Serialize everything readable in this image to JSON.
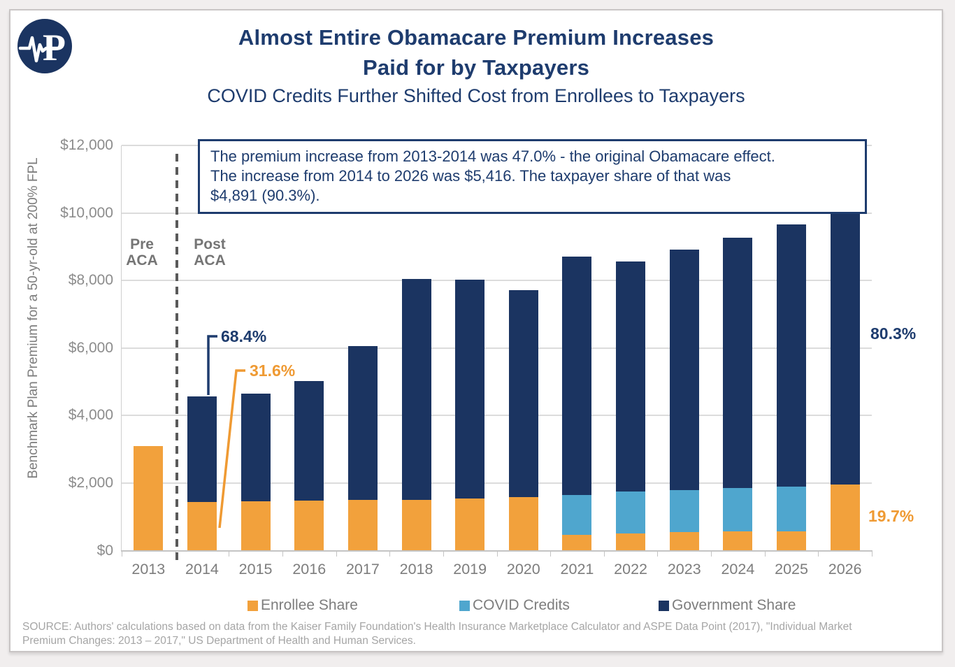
{
  "page": {
    "title_line1": "Almost Entire Obamacare Premium Increases",
    "title_line2": "Paid for by Taxpayers",
    "subtitle": "COVID Credits Further Shifted Cost from Enrollees to Taxpayers",
    "logo_letter": "P",
    "source_line1": "SOURCE: Authors' calculations based on data from the Kaiser Family Foundation's Health Insurance Marketplace Calculator and ASPE Data Point (2017), \"Individual Market",
    "source_line2": "Premium Changes: 2013 – 2017,\" US Department of Health and Human Services."
  },
  "annotation_box": {
    "lines": [
      "The premium increase from 2013-2014 was 47.0% - the original Obamacare effect.",
      "The increase from 2014 to 2026 was $5,416. The taxpayer share of that was",
      "$4,891 (90.3%)."
    ]
  },
  "region_labels": {
    "pre_line1": "Pre",
    "pre_line2": "ACA",
    "post_line1": "Post",
    "post_line2": "ACA"
  },
  "callouts": {
    "gov_share_2014": "68.4%",
    "enrollee_share_2014": "31.6%",
    "gov_share_2026": "80.3%",
    "enrollee_share_2026": "19.7%"
  },
  "colors": {
    "navy": "#1b3461",
    "orange": "#f2a13c",
    "blue": "#4fa6ce",
    "title_navy": "#1e3c6e"
  },
  "chart_data": {
    "type": "bar",
    "stacked": true,
    "title": "Almost Entire Obamacare Premium Increases Paid for by Taxpayers",
    "subtitle": "COVID Credits Further Shifted Cost from Enrollees to Taxpayers",
    "xlabel": "",
    "ylabel": "Benchmark Plan Premium for a 50-yr-old at 200% FPL",
    "ylim": [
      0,
      12000
    ],
    "grid": true,
    "legend_position": "bottom",
    "yticks": [
      {
        "value": 0,
        "label": "$0"
      },
      {
        "value": 2000,
        "label": "$2,000"
      },
      {
        "value": 4000,
        "label": "$4,000"
      },
      {
        "value": 6000,
        "label": "$6,000"
      },
      {
        "value": 8000,
        "label": "$8,000"
      },
      {
        "value": 10000,
        "label": "$10,000"
      },
      {
        "value": 12000,
        "label": "$12,000"
      }
    ],
    "categories": [
      "2013",
      "2014",
      "2015",
      "2016",
      "2017",
      "2018",
      "2019",
      "2020",
      "2021",
      "2022",
      "2023",
      "2024",
      "2025",
      "2026"
    ],
    "series": [
      {
        "name": "Enrollee Share",
        "color_key": "orange",
        "values": [
          3105,
          1442,
          1460,
          1480,
          1500,
          1510,
          1540,
          1590,
          470,
          500,
          550,
          570,
          570,
          1966
        ]
      },
      {
        "name": "COVID Credits",
        "color_key": "blue",
        "values": [
          0,
          0,
          0,
          0,
          0,
          0,
          0,
          0,
          1170,
          1245,
          1245,
          1290,
          1330,
          0
        ]
      },
      {
        "name": "Government Share",
        "color_key": "navy",
        "values": [
          0,
          3122,
          3180,
          3550,
          4560,
          6540,
          6490,
          6130,
          7075,
          6825,
          7115,
          7410,
          7750,
          8014
        ]
      }
    ],
    "annotations": {
      "divider": "dashed line between 2013 and 2014",
      "pre_aca": "Pre ACA",
      "post_aca": "Post ACA",
      "share_labels": {
        "2014_government": "68.4%",
        "2014_enrollee": "31.6%",
        "2026_government": "80.3%",
        "2026_enrollee": "19.7%"
      }
    }
  }
}
